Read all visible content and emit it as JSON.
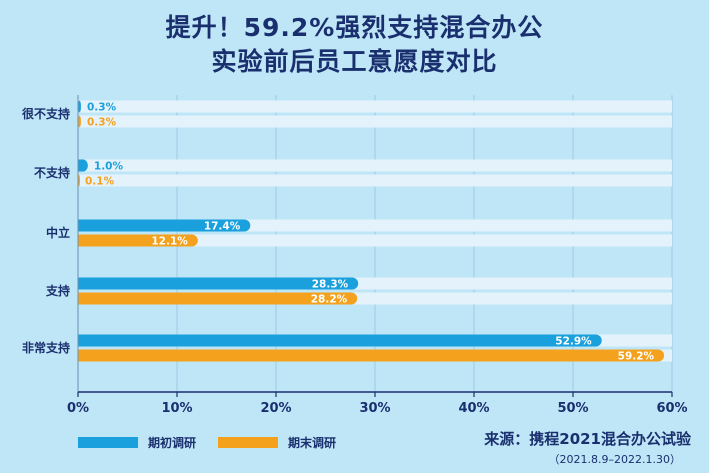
{
  "title_line1": "提升！59.2%强烈支持混合办公",
  "title_line2": "实验前后员工意愿度对比",
  "source": "来源：携程2021混合办公试验",
  "source_date": "（2021.8.9–2022.1.30）",
  "colors": {
    "series1": "#1aa0dc",
    "series2": "#f4a21e",
    "track": "#e4f3fb"
  },
  "chart_data": {
    "type": "bar",
    "orientation": "horizontal",
    "categories": [
      "很不支持",
      "不支持",
      "中立",
      "支持",
      "非常支持"
    ],
    "series": [
      {
        "name": "期初调研",
        "values": [
          0.3,
          1.0,
          17.4,
          28.3,
          52.9
        ],
        "labels": [
          "0.3%",
          "1.0%",
          "17.4%",
          "28.3%",
          "52.9%"
        ]
      },
      {
        "name": "期末调研",
        "values": [
          0.3,
          0.1,
          12.1,
          28.2,
          59.2
        ],
        "labels": [
          "0.3%",
          "0.1%",
          "12.1%",
          "28.2%",
          "59.2%"
        ]
      }
    ],
    "xlim": [
      0,
      60
    ],
    "xticks": [
      0,
      10,
      20,
      30,
      40,
      50,
      60
    ],
    "xtick_labels": [
      "0%",
      "10%",
      "20%",
      "30%",
      "40%",
      "50%",
      "60%"
    ],
    "legend_position": "bottom-left",
    "grid": true
  }
}
